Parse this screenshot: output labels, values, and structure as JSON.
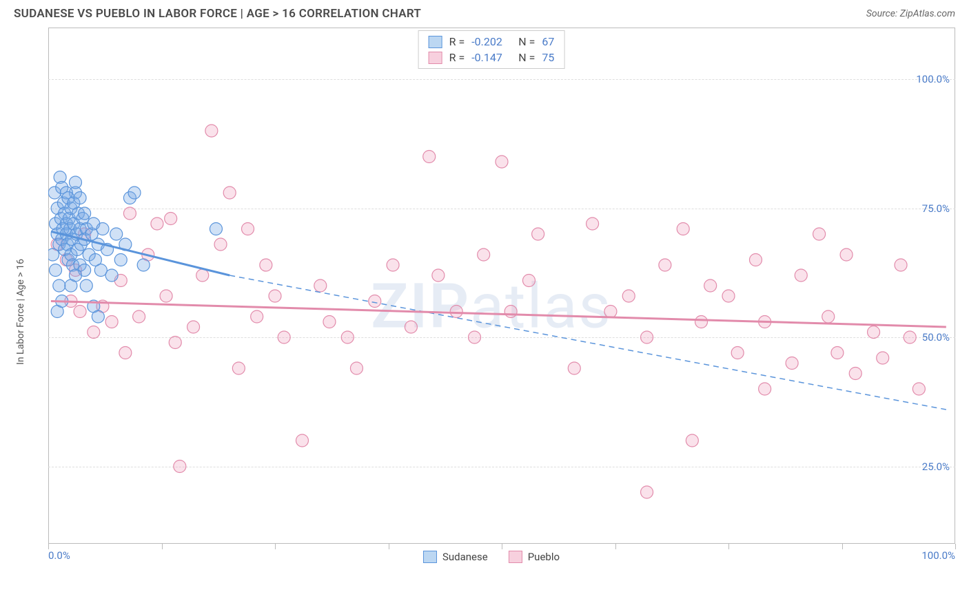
{
  "header": {
    "title": "SUDANESE VS PUEBLO IN LABOR FORCE | AGE > 16 CORRELATION CHART",
    "source": "Source: ZipAtlas.com"
  },
  "watermark": {
    "part1": "ZIP",
    "part2": "atlas"
  },
  "chart": {
    "type": "scatter",
    "ylabel": "In Labor Force | Age > 16",
    "xlim": [
      0,
      100
    ],
    "ylim": [
      10,
      110
    ],
    "y_gridlines": [
      25,
      50,
      75,
      100
    ],
    "ytick_labels": [
      "25.0%",
      "50.0%",
      "75.0%",
      "100.0%"
    ],
    "x_ticks": [
      0,
      12.5,
      25,
      37.5,
      50,
      62.5,
      75,
      87.5,
      100
    ],
    "xtick_labels": {
      "start": "0.0%",
      "end": "100.0%"
    },
    "background_color": "#ffffff",
    "grid_color": "#dddddd",
    "border_color": "#bbbbbb",
    "tick_label_color": "#4a7bc8",
    "ylabel_color": "#555555",
    "marker_radius": 9,
    "marker_stroke_width": 1.2,
    "trend_line_width": 3,
    "dash_pattern": "8 6",
    "series": [
      {
        "name": "Sudanese",
        "color_stroke": "#5a94db",
        "color_fill": "rgba(120,170,230,0.35)",
        "swatch_fill": "#bcd7f2",
        "swatch_border": "#5a94db",
        "R": "-0.202",
        "N": "67",
        "trend_solid": {
          "x1": 0.3,
          "y1": 70.5,
          "x2": 20,
          "y2": 62
        },
        "trend_dash": {
          "x1": 20,
          "y1": 62,
          "x2": 99,
          "y2": 36
        },
        "points": [
          [
            0.5,
            66
          ],
          [
            0.7,
            78
          ],
          [
            0.8,
            72
          ],
          [
            1.0,
            75
          ],
          [
            1.0,
            70
          ],
          [
            1.2,
            68
          ],
          [
            1.3,
            81
          ],
          [
            1.4,
            73
          ],
          [
            1.5,
            69
          ],
          [
            1.6,
            71
          ],
          [
            1.7,
            76
          ],
          [
            1.8,
            74
          ],
          [
            1.8,
            67
          ],
          [
            2.0,
            72
          ],
          [
            2.0,
            70
          ],
          [
            2.1,
            68
          ],
          [
            2.2,
            65
          ],
          [
            2.3,
            73
          ],
          [
            2.4,
            71
          ],
          [
            2.5,
            75
          ],
          [
            2.5,
            66
          ],
          [
            2.6,
            69
          ],
          [
            2.7,
            64
          ],
          [
            2.8,
            72
          ],
          [
            3.0,
            78
          ],
          [
            3.1,
            70
          ],
          [
            3.2,
            67
          ],
          [
            3.3,
            74
          ],
          [
            3.5,
            71
          ],
          [
            3.5,
            64
          ],
          [
            3.6,
            68
          ],
          [
            3.8,
            73
          ],
          [
            4.0,
            69
          ],
          [
            4.0,
            63
          ],
          [
            4.2,
            71
          ],
          [
            4.5,
            66
          ],
          [
            4.8,
            70
          ],
          [
            5.0,
            72
          ],
          [
            5.2,
            65
          ],
          [
            5.5,
            68
          ],
          [
            5.8,
            63
          ],
          [
            6.0,
            71
          ],
          [
            6.5,
            67
          ],
          [
            7.0,
            62
          ],
          [
            7.5,
            70
          ],
          [
            8.0,
            65
          ],
          [
            8.5,
            68
          ],
          [
            9.0,
            77
          ],
          [
            3.0,
            80
          ],
          [
            1.5,
            79
          ],
          [
            2.0,
            78
          ],
          [
            2.2,
            77
          ],
          [
            2.8,
            76
          ],
          [
            3.5,
            77
          ],
          [
            4.0,
            74
          ],
          [
            5.0,
            56
          ],
          [
            5.5,
            54
          ],
          [
            1.0,
            55
          ],
          [
            1.5,
            57
          ],
          [
            1.2,
            60
          ],
          [
            2.5,
            60
          ],
          [
            0.8,
            63
          ],
          [
            3.0,
            62
          ],
          [
            4.2,
            60
          ],
          [
            9.5,
            78
          ],
          [
            10.5,
            64
          ],
          [
            18.5,
            71
          ]
        ]
      },
      {
        "name": "Pueblo",
        "color_stroke": "#e28bab",
        "color_fill": "rgba(240,160,190,0.30)",
        "swatch_fill": "#f7d0de",
        "swatch_border": "#e28bab",
        "R": "-0.147",
        "N": "75",
        "trend_solid": {
          "x1": 0.3,
          "y1": 57,
          "x2": 99,
          "y2": 52
        },
        "trend_dash": null,
        "points": [
          [
            1,
            68
          ],
          [
            2,
            65
          ],
          [
            2.5,
            57
          ],
          [
            3,
            63
          ],
          [
            3.5,
            55
          ],
          [
            4,
            70
          ],
          [
            5,
            51
          ],
          [
            6,
            56
          ],
          [
            7,
            53
          ],
          [
            8,
            61
          ],
          [
            8.5,
            47
          ],
          [
            9,
            74
          ],
          [
            10,
            54
          ],
          [
            11,
            66
          ],
          [
            12,
            72
          ],
          [
            13,
            58
          ],
          [
            13.5,
            73
          ],
          [
            14,
            49
          ],
          [
            14.5,
            25
          ],
          [
            16,
            52
          ],
          [
            17,
            62
          ],
          [
            18,
            90
          ],
          [
            19,
            68
          ],
          [
            20,
            78
          ],
          [
            21,
            44
          ],
          [
            22,
            71
          ],
          [
            23,
            54
          ],
          [
            24,
            64
          ],
          [
            25,
            58
          ],
          [
            26,
            50
          ],
          [
            28,
            30
          ],
          [
            30,
            60
          ],
          [
            31,
            53
          ],
          [
            33,
            50
          ],
          [
            34,
            44
          ],
          [
            36,
            57
          ],
          [
            38,
            64
          ],
          [
            40,
            52
          ],
          [
            42,
            85
          ],
          [
            43,
            62
          ],
          [
            45,
            55
          ],
          [
            47,
            50
          ],
          [
            48,
            66
          ],
          [
            50,
            84
          ],
          [
            51,
            55
          ],
          [
            53,
            61
          ],
          [
            54,
            70
          ],
          [
            58,
            44
          ],
          [
            60,
            72
          ],
          [
            62,
            55
          ],
          [
            64,
            58
          ],
          [
            66,
            50
          ],
          [
            66,
            20
          ],
          [
            68,
            64
          ],
          [
            70,
            71
          ],
          [
            71,
            30
          ],
          [
            72,
            53
          ],
          [
            73,
            60
          ],
          [
            75,
            58
          ],
          [
            76,
            47
          ],
          [
            78,
            65
          ],
          [
            79,
            40
          ],
          [
            79,
            53
          ],
          [
            82,
            45
          ],
          [
            83,
            62
          ],
          [
            85,
            70
          ],
          [
            86,
            54
          ],
          [
            87,
            47
          ],
          [
            88,
            66
          ],
          [
            89,
            43
          ],
          [
            91,
            51
          ],
          [
            92,
            46
          ],
          [
            94,
            64
          ],
          [
            95,
            50
          ],
          [
            96,
            40
          ]
        ]
      }
    ]
  },
  "legend_top": {
    "rows": [
      {
        "swatch_series": 0,
        "r_label": "R =",
        "r_val": "-0.202",
        "n_label": "N =",
        "n_val": "67"
      },
      {
        "swatch_series": 1,
        "r_label": "R =",
        "r_val": "-0.147",
        "n_label": "N =",
        "n_val": "75"
      }
    ]
  },
  "legend_bottom": {
    "items": [
      {
        "swatch_series": 0,
        "label": "Sudanese"
      },
      {
        "swatch_series": 1,
        "label": "Pueblo"
      }
    ]
  }
}
